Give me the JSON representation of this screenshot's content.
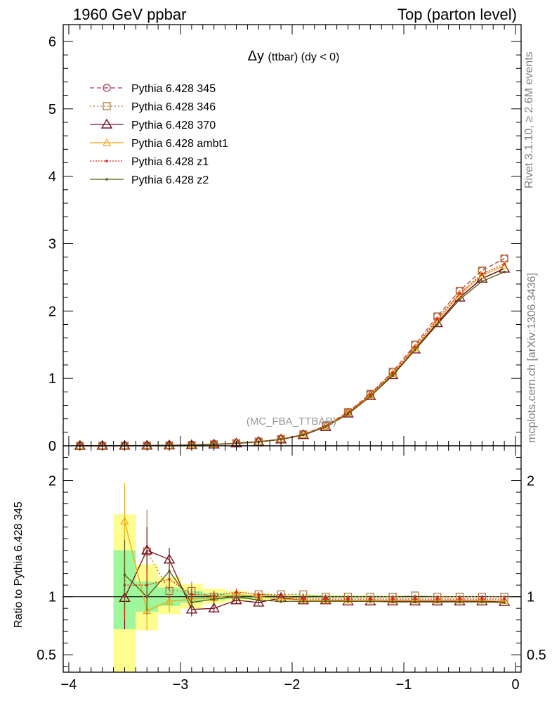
{
  "header": {
    "left": "1960 GeV ppbar",
    "right": "Top (parton level)"
  },
  "side_text": {
    "rivet": "Rivet 3.1.10, ≥ 2.6M events",
    "mcplots": "mcplots.cern.ch [arXiv:1306.3436]"
  },
  "colors": {
    "p345": "#b2344f",
    "p346": "#b0783c",
    "p370": "#7a1020",
    "ambt1": "#f0a818",
    "z1": "#e8200c",
    "z2": "#5a5a12",
    "band_green": "#9ef79a",
    "band_yellow": "#fdfd90"
  },
  "chart_data": [
    {
      "type": "line",
      "title": "Δy (ttbar) (dy < 0)",
      "watermark": "(MC_FBA_TTBAR)",
      "xlim": [
        -4.05,
        0.05
      ],
      "ylim": [
        0,
        6.25
      ],
      "yticks": [
        0,
        1,
        2,
        3,
        4,
        5,
        6
      ],
      "x": [
        -3.9,
        -3.7,
        -3.5,
        -3.3,
        -3.1,
        -2.9,
        -2.7,
        -2.5,
        -2.3,
        -2.1,
        -1.9,
        -1.7,
        -1.5,
        -1.3,
        -1.1,
        -0.9,
        -0.7,
        -0.5,
        -0.3,
        -0.1
      ],
      "series": [
        {
          "name": "Pythia 6.428 345",
          "key": "p345",
          "marker": "circle",
          "dash": "6,4",
          "values": [
            0.0003,
            0.0007,
            0.0016,
            0.003,
            0.006,
            0.012,
            0.022,
            0.038,
            0.062,
            0.1,
            0.17,
            0.3,
            0.5,
            0.77,
            1.1,
            1.5,
            1.92,
            2.3,
            2.6,
            2.78
          ]
        },
        {
          "name": "Pythia 6.428 346",
          "key": "p346",
          "marker": "square",
          "dash": "2,3",
          "values": [
            0.0003,
            0.0007,
            0.0016,
            0.003,
            0.006,
            0.012,
            0.022,
            0.038,
            0.062,
            0.1,
            0.17,
            0.3,
            0.5,
            0.77,
            1.1,
            1.5,
            1.92,
            2.3,
            2.6,
            2.78
          ]
        },
        {
          "name": "Pythia 6.428 370",
          "key": "p370",
          "marker": "triangle",
          "dash": "",
          "values": [
            0.0003,
            0.0007,
            0.0016,
            0.003,
            0.006,
            0.011,
            0.02,
            0.036,
            0.059,
            0.095,
            0.16,
            0.28,
            0.48,
            0.74,
            1.05,
            1.43,
            1.82,
            2.2,
            2.48,
            2.63
          ]
        },
        {
          "name": "Pythia 6.428 ambt1",
          "key": "ambt1",
          "marker": "triangle-small",
          "dash": "",
          "values": [
            0.0003,
            0.0007,
            0.0016,
            0.003,
            0.006,
            0.012,
            0.021,
            0.037,
            0.06,
            0.097,
            0.165,
            0.29,
            0.49,
            0.75,
            1.07,
            1.45,
            1.86,
            2.24,
            2.53,
            2.67
          ]
        },
        {
          "name": "Pythia 6.428 z1",
          "key": "z1",
          "marker": "dot",
          "dash": "2,2",
          "values": [
            0.0003,
            0.0007,
            0.0016,
            0.003,
            0.006,
            0.012,
            0.021,
            0.037,
            0.06,
            0.097,
            0.165,
            0.29,
            0.49,
            0.76,
            1.08,
            1.47,
            1.88,
            2.26,
            2.55,
            2.7
          ]
        },
        {
          "name": "Pythia 6.428 z2",
          "key": "z2",
          "marker": "dot",
          "dash": "",
          "values": [
            0.0003,
            0.0007,
            0.0016,
            0.003,
            0.006,
            0.011,
            0.02,
            0.035,
            0.058,
            0.094,
            0.16,
            0.28,
            0.47,
            0.73,
            1.04,
            1.42,
            1.8,
            2.17,
            2.44,
            2.58
          ]
        }
      ]
    },
    {
      "type": "line",
      "ylabel": "Ratio to Pythia 6.428 345",
      "xlim": [
        -4.05,
        0.05
      ],
      "ylim": [
        0.35,
        2.3
      ],
      "xticks": [
        -4,
        -3,
        -2,
        -1,
        0
      ],
      "yticks": [
        0.5,
        1,
        2
      ],
      "ytick_labels": [
        "0.5",
        "1",
        "2"
      ],
      "x": [
        -3.9,
        -3.7,
        -3.5,
        -3.3,
        -3.1,
        -2.9,
        -2.7,
        -2.5,
        -2.3,
        -2.1,
        -1.9,
        -1.7,
        -1.5,
        -1.3,
        -1.1,
        -0.9,
        -0.7,
        -0.5,
        -0.3,
        -0.1
      ],
      "bands": {
        "bin_lo": [
          -3.6,
          -3.4,
          -3.2,
          -3.0,
          -2.8,
          -2.6,
          -2.4,
          -2.2,
          -2.0,
          -1.8,
          -1.6,
          -1.4,
          -1.2,
          -1.0,
          -0.8,
          -0.6,
          -0.4,
          -0.2
        ],
        "bin_hi": [
          -3.4,
          -3.2,
          -3.0,
          -2.8,
          -2.6,
          -2.4,
          -2.2,
          -2.0,
          -1.8,
          -1.6,
          -1.4,
          -1.2,
          -1.0,
          -0.8,
          -0.6,
          -0.4,
          -0.2,
          0.0
        ],
        "green_lo": [
          0.72,
          0.87,
          0.92,
          0.95,
          0.97,
          0.98,
          0.985,
          0.99,
          0.99,
          0.99,
          0.992,
          0.993,
          0.994,
          0.995,
          0.996,
          0.996,
          0.997,
          0.997
        ],
        "green_hi": [
          1.4,
          1.13,
          1.08,
          1.05,
          1.03,
          1.02,
          1.015,
          1.01,
          1.01,
          1.01,
          1.008,
          1.007,
          1.006,
          1.005,
          1.004,
          1.004,
          1.003,
          1.003
        ],
        "yellow_lo": [
          0.35,
          0.71,
          0.85,
          0.9,
          0.94,
          0.96,
          0.97,
          0.98,
          0.98,
          0.985,
          0.987,
          0.989,
          0.99,
          0.991,
          0.992,
          0.993,
          0.994,
          0.994
        ],
        "yellow_hi": [
          1.71,
          1.28,
          1.17,
          1.11,
          1.07,
          1.05,
          1.03,
          1.02,
          1.02,
          1.015,
          1.013,
          1.011,
          1.01,
          1.009,
          1.008,
          1.007,
          1.006,
          1.006
        ]
      },
      "series": [
        {
          "key": "p346",
          "marker": "square",
          "dash": "2,3",
          "xstart": 3,
          "values": [
            null,
            null,
            null,
            1.39,
            1.05,
            1.05,
            1.0,
            1.0,
            1.02,
            1.02,
            1.02,
            1.0,
            1.0,
            1.0,
            1.0,
            1.01,
            1.0,
            1.0,
            1.0,
            1.0
          ],
          "err": [
            null,
            null,
            null,
            0.36,
            0.12,
            0.08,
            0.05,
            0.03,
            0.02,
            0.015,
            0.012,
            0.01,
            0.01,
            0.01,
            0.01,
            0.01,
            0.01,
            0.01,
            0.01,
            0.01
          ]
        },
        {
          "key": "p370",
          "marker": "triangle",
          "dash": "",
          "values": [
            null,
            null,
            0.99,
            1.4,
            1.32,
            0.89,
            0.9,
            0.97,
            0.95,
            0.99,
            0.97,
            0.97,
            0.96,
            0.96,
            0.96,
            0.96,
            0.96,
            0.96,
            0.96,
            0.955
          ],
          "err": [
            null,
            null,
            0.27,
            0.2,
            0.1,
            0.06,
            0.04,
            0.03,
            0.02,
            0.015,
            0.012,
            0.01,
            0.01,
            0.01,
            0.01,
            0.01,
            0.01,
            0.01,
            0.01,
            0.01
          ]
        },
        {
          "key": "ambt1",
          "marker": "triangle-small",
          "dash": "",
          "values": [
            null,
            null,
            1.65,
            0.88,
            0.96,
            0.98,
            0.99,
            1.02,
            1.0,
            0.98,
            0.97,
            0.97,
            0.97,
            0.97,
            0.97,
            0.97,
            0.97,
            0.97,
            0.97,
            0.965
          ],
          "err": [
            null,
            null,
            0.33,
            0.17,
            0.09,
            0.06,
            0.04,
            0.03,
            0.02,
            0.015,
            0.012,
            0.01,
            0.01,
            0.01,
            0.01,
            0.01,
            0.01,
            0.01,
            0.01,
            0.01
          ]
        },
        {
          "key": "z1",
          "marker": "dot",
          "dash": "2,2",
          "values": [
            null,
            null,
            1.1,
            1.1,
            1.15,
            1.02,
            1.01,
            1.04,
            1.02,
            1.01,
            0.98,
            0.98,
            0.98,
            0.98,
            0.98,
            0.98,
            0.98,
            0.98,
            0.98,
            0.98
          ],
          "err": [
            null,
            null,
            0.3,
            0.15,
            0.09,
            0.06,
            0.04,
            0.03,
            0.02,
            0.015,
            0.012,
            0.01,
            0.01,
            0.01,
            0.01,
            0.01,
            0.01,
            0.01,
            0.01,
            0.01
          ]
        },
        {
          "key": "z2",
          "marker": "dot",
          "dash": "",
          "values": [
            null,
            null,
            1.19,
            1.0,
            1.22,
            0.95,
            0.98,
            1.0,
            0.97,
            0.96,
            0.96,
            0.96,
            0.96,
            0.96,
            0.955,
            0.955,
            0.955,
            0.955,
            0.955,
            0.95
          ],
          "err": [
            null,
            null,
            0.3,
            0.15,
            0.09,
            0.06,
            0.04,
            0.03,
            0.02,
            0.015,
            0.012,
            0.01,
            0.01,
            0.01,
            0.01,
            0.01,
            0.01,
            0.01,
            0.01,
            0.01
          ]
        }
      ]
    }
  ]
}
